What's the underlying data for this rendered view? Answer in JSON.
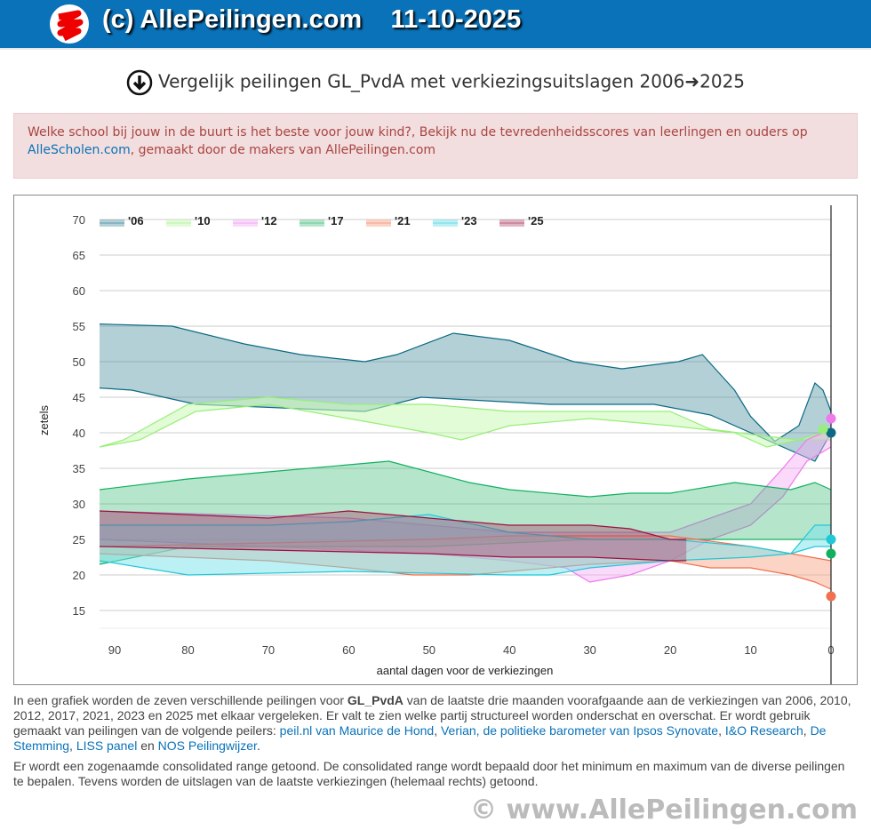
{
  "header": {
    "title": "(c) AllePeilingen.com",
    "date": "11-10-2025"
  },
  "page_title": "Vergelijk peilingen GL_PvdA met verkiezingsuitslagen 2006➜2025",
  "alert": {
    "text": "Welke school bij jouw in de buurt is het beste voor jouw kind?, Bekijk nu de tevredenheidsscores van leerlingen en ouders op ",
    "link": "AlleScholen.com",
    "text2": ", gemaakt door de makers van AllePeilingen.com"
  },
  "chart_data": {
    "type": "area",
    "xlabel": "aantal dagen voor de verkiezingen",
    "ylabel": "zetels",
    "xlim": [
      91,
      0
    ],
    "ylim": [
      12,
      72
    ],
    "xticks": [
      90,
      80,
      70,
      60,
      50,
      40,
      30,
      20,
      10,
      0
    ],
    "yticks": [
      70,
      65,
      60,
      55,
      50,
      45,
      40,
      35,
      30,
      25,
      20,
      15
    ],
    "grid": true,
    "legend": "top-left",
    "series": [
      {
        "name": "'06",
        "color": "#0b6a82",
        "fill": "rgba(74,143,160,0.42)",
        "result": 40,
        "top": [
          [
            91,
            55.3
          ],
          [
            82,
            55
          ],
          [
            73,
            52.5
          ],
          [
            66,
            51
          ],
          [
            58,
            50
          ],
          [
            54,
            51
          ],
          [
            47,
            54
          ],
          [
            40,
            53
          ],
          [
            32,
            50
          ],
          [
            26,
            49
          ],
          [
            19,
            50
          ],
          [
            16,
            51
          ],
          [
            12,
            46
          ],
          [
            10,
            42.3
          ],
          [
            7,
            38.8
          ],
          [
            4,
            41
          ],
          [
            2,
            47
          ],
          [
            1,
            46
          ],
          [
            0,
            43
          ]
        ],
        "bottom": [
          [
            91,
            46.3
          ],
          [
            87,
            46
          ],
          [
            79,
            44
          ],
          [
            58,
            43
          ],
          [
            51,
            45
          ],
          [
            35,
            44
          ],
          [
            22,
            44
          ],
          [
            15,
            42.5
          ],
          [
            2,
            36
          ],
          [
            0,
            40
          ]
        ]
      },
      {
        "name": "'10",
        "color": "#98ee78",
        "fill": "rgba(200,250,180,0.55)",
        "result": 40.5,
        "top": [
          [
            91,
            38
          ],
          [
            88,
            39
          ],
          [
            80,
            44
          ],
          [
            70,
            45
          ],
          [
            60,
            44
          ],
          [
            50,
            44
          ],
          [
            40,
            43
          ],
          [
            30,
            43
          ],
          [
            20,
            43
          ],
          [
            15,
            40.5
          ],
          [
            8,
            39.5
          ],
          [
            4,
            39
          ],
          [
            0,
            40.5
          ]
        ],
        "bottom": [
          [
            91,
            38
          ],
          [
            86,
            39
          ],
          [
            79,
            43
          ],
          [
            70,
            44
          ],
          [
            60,
            42
          ],
          [
            50,
            40
          ],
          [
            46,
            39
          ],
          [
            40,
            41
          ],
          [
            30,
            42
          ],
          [
            20,
            41
          ],
          [
            12,
            40
          ],
          [
            8,
            38
          ],
          [
            4,
            39
          ],
          [
            0,
            39
          ]
        ]
      },
      {
        "name": "'12",
        "color": "#ee7aee",
        "fill": "rgba(245,170,245,0.45)",
        "result": 42,
        "top": [
          [
            91,
            29
          ],
          [
            60,
            28
          ],
          [
            50,
            27
          ],
          [
            40,
            26
          ],
          [
            30,
            26
          ],
          [
            20,
            26
          ],
          [
            15,
            28
          ],
          [
            10,
            30
          ],
          [
            6,
            35
          ],
          [
            3,
            39
          ],
          [
            0,
            40.5
          ]
        ],
        "bottom": [
          [
            91,
            25
          ],
          [
            70,
            24
          ],
          [
            50,
            23
          ],
          [
            40,
            22
          ],
          [
            33,
            21
          ],
          [
            30,
            19
          ],
          [
            25,
            20
          ],
          [
            20,
            22
          ],
          [
            15,
            25
          ],
          [
            10,
            27
          ],
          [
            6,
            31
          ],
          [
            3,
            36
          ],
          [
            0,
            38
          ]
        ]
      },
      {
        "name": "'17",
        "color": "#10b060",
        "fill": "rgba(60,190,120,0.38)",
        "result": 23,
        "top": [
          [
            91,
            32
          ],
          [
            80,
            33.5
          ],
          [
            70,
            34.5
          ],
          [
            55,
            36
          ],
          [
            45,
            33
          ],
          [
            40,
            32
          ],
          [
            30,
            31
          ],
          [
            25,
            31.5
          ],
          [
            20,
            31.5
          ],
          [
            12,
            33
          ],
          [
            5,
            32
          ],
          [
            2,
            33
          ],
          [
            0,
            32
          ]
        ],
        "bottom": [
          [
            91,
            21.5
          ],
          [
            80,
            24
          ],
          [
            70,
            24
          ],
          [
            50,
            24
          ],
          [
            40,
            24.5
          ],
          [
            30,
            25
          ],
          [
            20,
            25
          ],
          [
            10,
            25
          ],
          [
            0,
            25
          ]
        ]
      },
      {
        "name": "'21",
        "color": "#f07050",
        "fill": "rgba(250,170,140,0.5)",
        "result": 17,
        "top": [
          [
            91,
            24
          ],
          [
            70,
            24.5
          ],
          [
            50,
            25
          ],
          [
            40,
            25.5
          ],
          [
            30,
            25.5
          ],
          [
            20,
            25.5
          ],
          [
            10,
            24
          ],
          [
            5,
            23
          ],
          [
            0,
            22
          ]
        ],
        "bottom": [
          [
            91,
            23
          ],
          [
            70,
            22
          ],
          [
            60,
            21
          ],
          [
            52,
            20
          ],
          [
            45,
            20
          ],
          [
            40,
            20.5
          ],
          [
            30,
            21.5
          ],
          [
            20,
            22
          ],
          [
            15,
            21
          ],
          [
            10,
            21
          ],
          [
            5,
            20
          ],
          [
            2,
            19
          ],
          [
            0,
            18
          ]
        ]
      },
      {
        "name": "'23",
        "color": "#20c8d8",
        "fill": "rgba(120,225,235,0.5)",
        "result": 25,
        "top": [
          [
            91,
            27
          ],
          [
            70,
            27
          ],
          [
            60,
            27.5
          ],
          [
            50,
            28.5
          ],
          [
            40,
            26
          ],
          [
            30,
            25
          ],
          [
            20,
            25
          ],
          [
            10,
            24
          ],
          [
            5,
            23
          ],
          [
            2,
            27
          ],
          [
            0,
            27
          ]
        ],
        "bottom": [
          [
            91,
            22
          ],
          [
            80,
            20
          ],
          [
            60,
            20.5
          ],
          [
            40,
            20
          ],
          [
            35,
            20
          ],
          [
            30,
            21
          ],
          [
            20,
            22
          ],
          [
            10,
            22.5
          ],
          [
            5,
            23
          ],
          [
            2,
            24
          ],
          [
            0,
            24
          ]
        ]
      },
      {
        "name": "'25",
        "color": "#a01040",
        "fill": "rgba(170,40,90,0.35)",
        "result": null,
        "top": [
          [
            91,
            29
          ],
          [
            70,
            28
          ],
          [
            60,
            29
          ],
          [
            50,
            28
          ],
          [
            40,
            27
          ],
          [
            30,
            27
          ],
          [
            25,
            26.5
          ],
          [
            20,
            25
          ],
          [
            18,
            25
          ]
        ],
        "bottom": [
          [
            91,
            24
          ],
          [
            70,
            23.5
          ],
          [
            50,
            23
          ],
          [
            40,
            22.5
          ],
          [
            30,
            22.5
          ],
          [
            20,
            22
          ],
          [
            18,
            22
          ]
        ]
      }
    ]
  },
  "description": {
    "p1a": "In een grafiek worden de zeven verschillende peilingen voor ",
    "party": "GL_PvdA",
    "p1b": " van de laatste drie maanden voorafgaande aan de verkiezingen van 2006, 2010, 2012, 2017, 2021, 2023 en 2025 met elkaar vergeleken. Er valt te zien welke partij structureel worden onderschat en overschat. Er wordt gebruik gemaakt van peilingen van de volgende peilers: ",
    "links": [
      "peil.nl van Maurice de Hond",
      "Verian, de politieke barometer van Ipsos Synovate",
      "I&O Research",
      "De Stemming",
      "LISS panel",
      "NOS Peilingwijzer"
    ],
    "sep1": ", ",
    "sep2": " en ",
    "end": ".",
    "p2": "Er wordt een zogenaamde consolidated range getoond. De consolidated range wordt bepaald door het minimum en maximum van de diverse peilingen te bepalen. Tevens worden de uitslagen van de laatste verkiezingen (helemaal rechts) getoond."
  },
  "footer": "© www.AllePeilingen.com"
}
